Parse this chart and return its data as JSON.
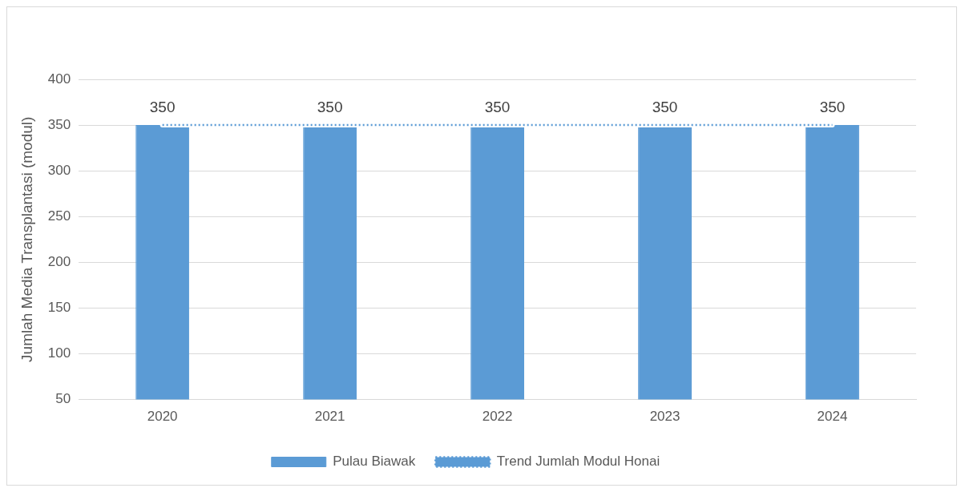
{
  "chart_data": {
    "type": "bar",
    "ylabel": "Jumlah Media Transplantasi (modul)",
    "categories": [
      "2020",
      "2021",
      "2022",
      "2023",
      "2024"
    ],
    "series": [
      {
        "name": "Pulau Biawak",
        "color": "#5b9bd5",
        "values": [
          350,
          350,
          350,
          350,
          350
        ],
        "value_labels": [
          "350",
          "350",
          "350",
          "350",
          "350"
        ]
      },
      {
        "name": "Trend Jumlah Modul Honai",
        "type": "line",
        "color": "#5b9bd5",
        "line_style": "dotted",
        "marker": "none",
        "values": [
          350,
          350,
          350,
          350,
          350
        ]
      }
    ],
    "ylim": [
      50,
      400
    ],
    "yticks": [
      50,
      100,
      150,
      200,
      250,
      300,
      350,
      400
    ],
    "grid": "y",
    "legend": "bottom"
  }
}
